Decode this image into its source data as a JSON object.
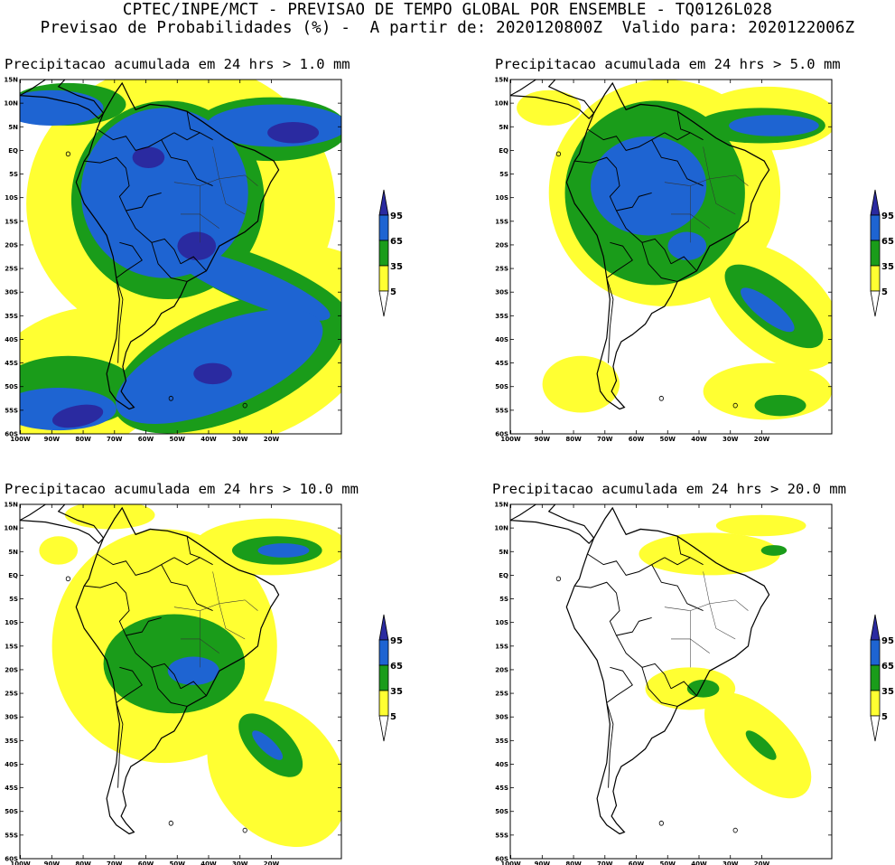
{
  "header": {
    "line1": "CPTEC/INPE/MCT - PREVISAO DE TEMPO GLOBAL POR ENSEMBLE - TQ0126L028",
    "line2": "Previsao de Probabilidades (%) -  A partir de: 2020120800Z  Valido para: 2020122006Z"
  },
  "colors": {
    "yellow": "#ffff32",
    "green": "#1a9c1a",
    "blue": "#1e64d2",
    "dblue": "#2a2aa0",
    "land": "#ffffff",
    "line": "#000000"
  },
  "axes": {
    "lat_labels": [
      "15N",
      "10N",
      "5N",
      "EQ",
      "5S",
      "10S",
      "15S",
      "20S",
      "25S",
      "30S",
      "35S",
      "40S",
      "45S",
      "50S",
      "55S",
      "60S"
    ],
    "lon_labels": [
      "100W",
      "90W",
      "80W",
      "70W",
      "60W",
      "50W",
      "40W",
      "30W",
      "20W"
    ]
  },
  "colorbar": {
    "labels": [
      "95",
      "65",
      "35",
      "5"
    ]
  },
  "panels": [
    {
      "title": "Precipitacao acumulada em 24 hrs > 1.0 mm"
    },
    {
      "title": "Precipitacao acumulada em 24 hrs > 5.0 mm"
    },
    {
      "title": "Precipitacao acumulada em 24 hrs > 10.0 mm"
    },
    {
      "title": "Precipitacao acumulada em 24 hrs > 20.0 mm"
    }
  ]
}
